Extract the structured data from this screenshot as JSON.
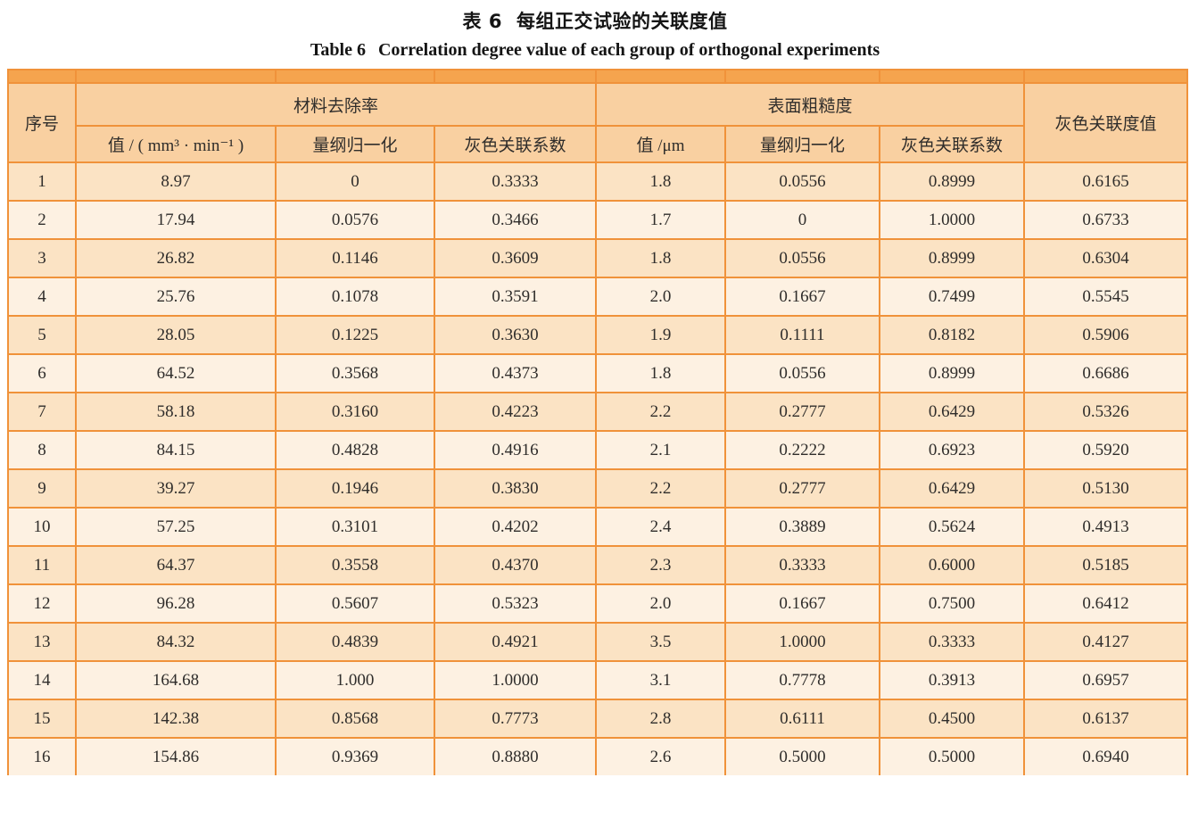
{
  "page": {
    "title_zh_label": "表 6",
    "title_zh": "每组正交试验的关联度值",
    "title_en_label": "Table 6",
    "title_en": "Correlation degree value of each group of orthogonal experiments"
  },
  "colors": {
    "top_bar": "#f5a44e",
    "header_bg": "#f9d0a1",
    "row_odd": "#fbe3c4",
    "row_even": "#fdf1e2",
    "border": "#f0923a"
  },
  "table": {
    "header": {
      "col_index": "序号",
      "col_overall": "灰色关联度值",
      "group_mrr": {
        "label": "材料去除率",
        "subs": [
          "值 / ( mm³ · min⁻¹ )",
          "量纲归一化",
          "灰色关联系数"
        ]
      },
      "group_ra": {
        "label": "表面粗糙度",
        "subs": [
          "值 /μm",
          "量纲归一化",
          "灰色关联系数"
        ]
      }
    },
    "rows": [
      [
        "1",
        "8.97",
        "0",
        "0.3333",
        "1.8",
        "0.0556",
        "0.8999",
        "0.6165"
      ],
      [
        "2",
        "17.94",
        "0.0576",
        "0.3466",
        "1.7",
        "0",
        "1.0000",
        "0.6733"
      ],
      [
        "3",
        "26.82",
        "0.1146",
        "0.3609",
        "1.8",
        "0.0556",
        "0.8999",
        "0.6304"
      ],
      [
        "4",
        "25.76",
        "0.1078",
        "0.3591",
        "2.0",
        "0.1667",
        "0.7499",
        "0.5545"
      ],
      [
        "5",
        "28.05",
        "0.1225",
        "0.3630",
        "1.9",
        "0.1111",
        "0.8182",
        "0.5906"
      ],
      [
        "6",
        "64.52",
        "0.3568",
        "0.4373",
        "1.8",
        "0.0556",
        "0.8999",
        "0.6686"
      ],
      [
        "7",
        "58.18",
        "0.3160",
        "0.4223",
        "2.2",
        "0.2777",
        "0.6429",
        "0.5326"
      ],
      [
        "8",
        "84.15",
        "0.4828",
        "0.4916",
        "2.1",
        "0.2222",
        "0.6923",
        "0.5920"
      ],
      [
        "9",
        "39.27",
        "0.1946",
        "0.3830",
        "2.2",
        "0.2777",
        "0.6429",
        "0.5130"
      ],
      [
        "10",
        "57.25",
        "0.3101",
        "0.4202",
        "2.4",
        "0.3889",
        "0.5624",
        "0.4913"
      ],
      [
        "11",
        "64.37",
        "0.3558",
        "0.4370",
        "2.3",
        "0.3333",
        "0.6000",
        "0.5185"
      ],
      [
        "12",
        "96.28",
        "0.5607",
        "0.5323",
        "2.0",
        "0.1667",
        "0.7500",
        "0.6412"
      ],
      [
        "13",
        "84.32",
        "0.4839",
        "0.4921",
        "3.5",
        "1.0000",
        "0.3333",
        "0.4127"
      ],
      [
        "14",
        "164.68",
        "1.000",
        "1.0000",
        "3.1",
        "0.7778",
        "0.3913",
        "0.6957"
      ],
      [
        "15",
        "142.38",
        "0.8568",
        "0.7773",
        "2.8",
        "0.6111",
        "0.4500",
        "0.6137"
      ],
      [
        "16",
        "154.86",
        "0.9369",
        "0.8880",
        "2.6",
        "0.5000",
        "0.5000",
        "0.6940"
      ]
    ]
  }
}
